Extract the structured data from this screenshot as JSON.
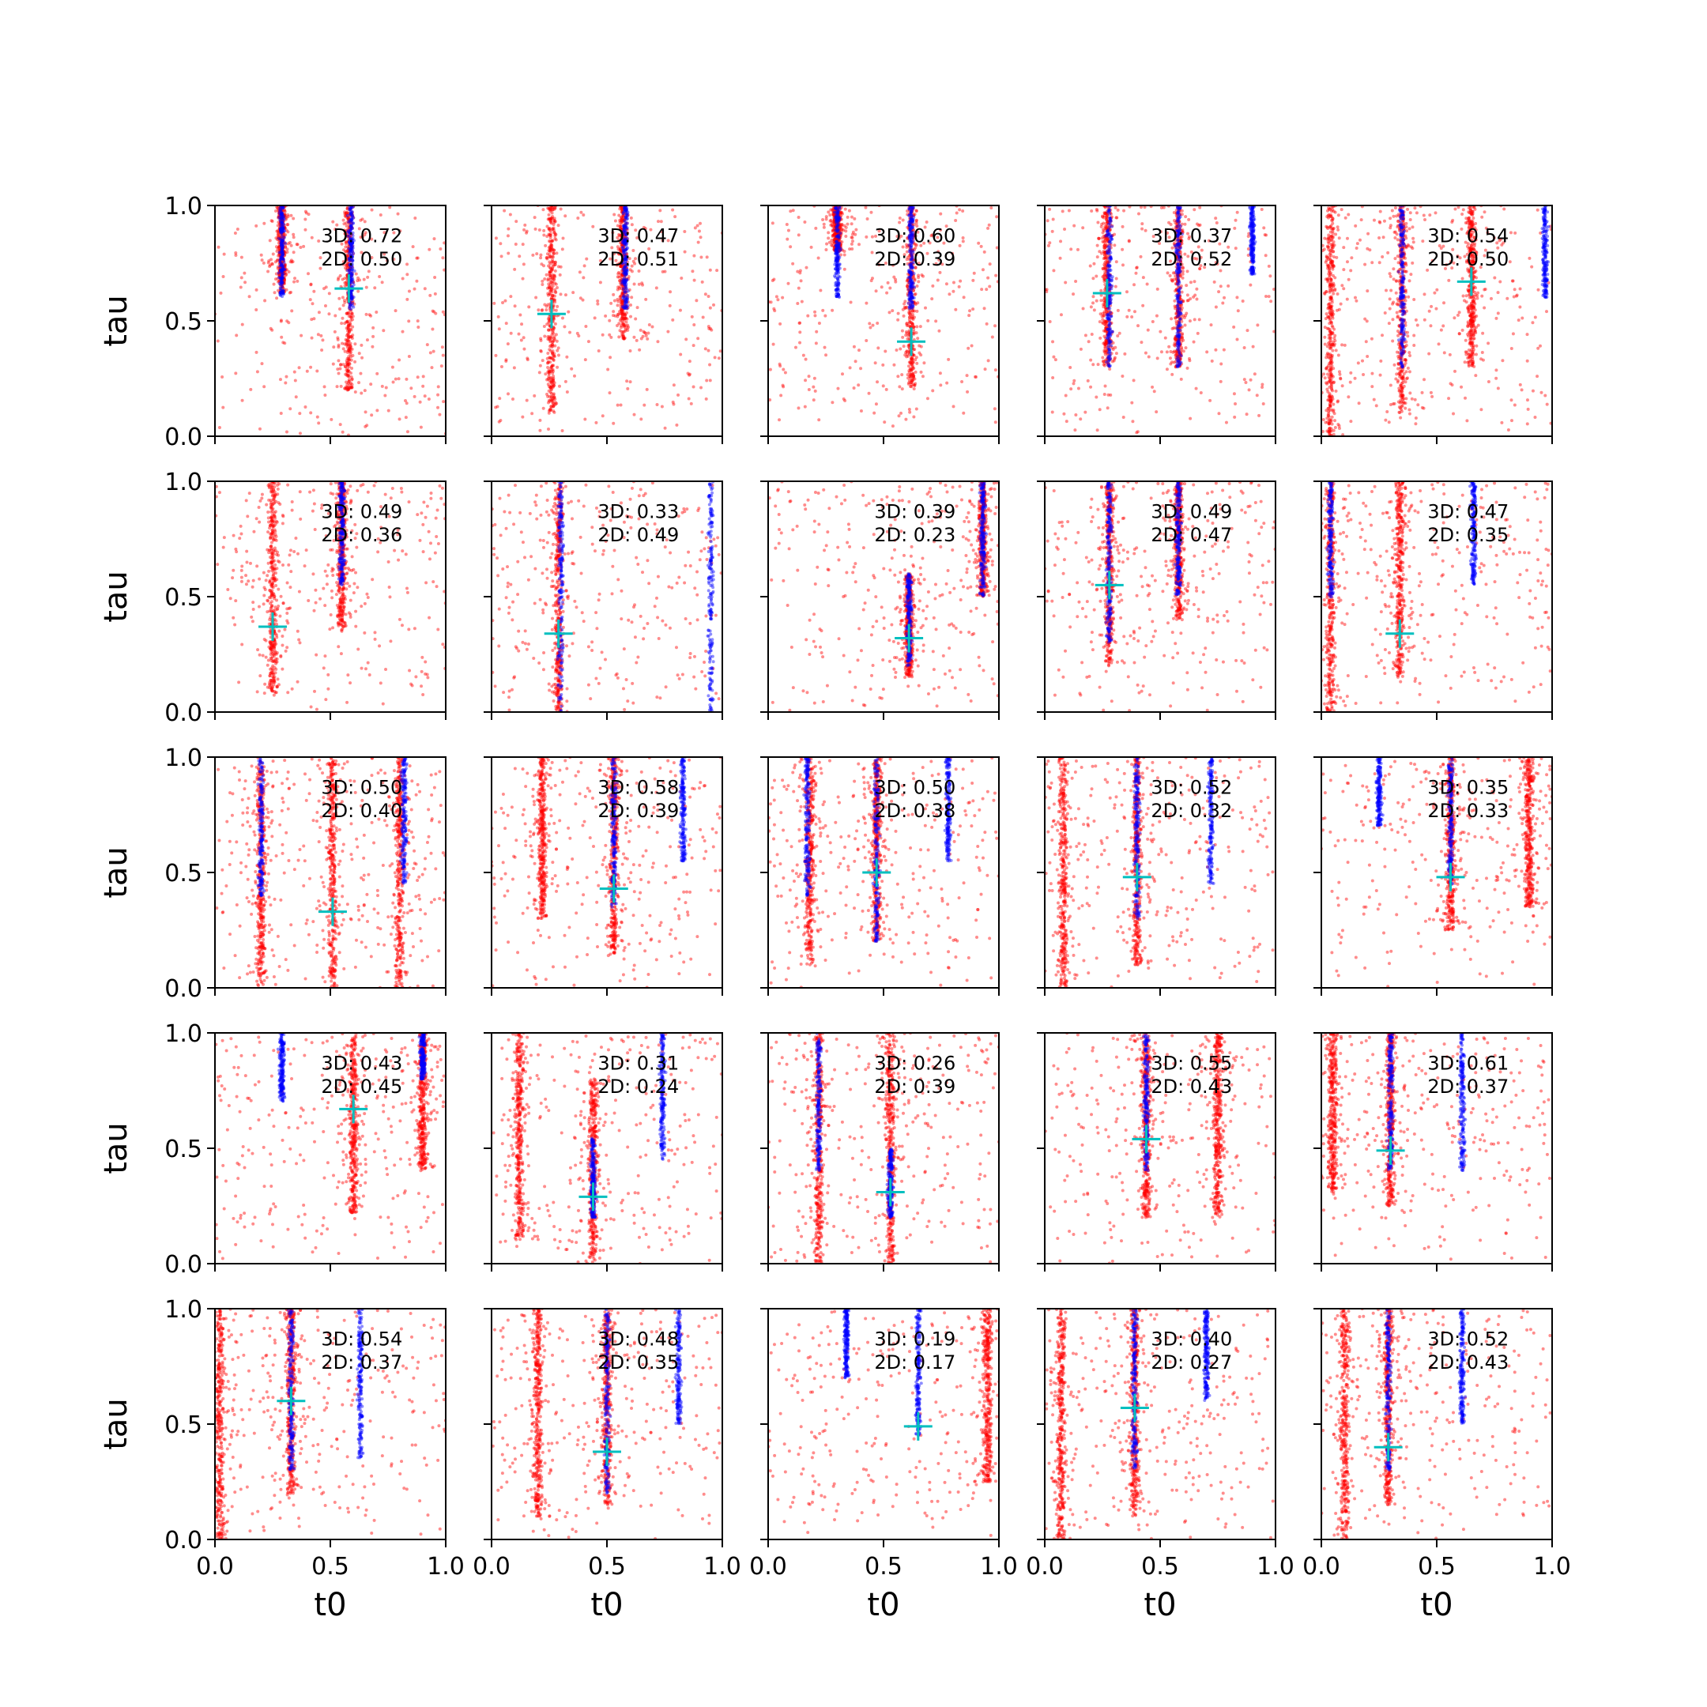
{
  "colors": {
    "red_points": "#ff0000",
    "blue_points": "#0000ff",
    "marker": "#00bfbf",
    "axis": "#000000"
  },
  "chart_data": {
    "type": "scatter",
    "layout": "grid 5 rows x 5 columns, shared axes",
    "xlabel": "t0",
    "ylabel": "tau",
    "xlim": [
      0,
      1
    ],
    "ylim": [
      0,
      1
    ],
    "x_ticks": [
      "0.0",
      "0.5",
      "1.0"
    ],
    "y_ticks": [
      "0.0",
      "0.5",
      "1.0"
    ],
    "series_styles": [
      {
        "color": "#ff0000",
        "marker": "small dot, semi-transparent"
      },
      {
        "color": "#0000ff",
        "marker": "small dot, semi-transparent"
      },
      {
        "color": "#00bfbf",
        "marker": "plus"
      }
    ],
    "panels": [
      {
        "label3d": "3D: 0.72",
        "label2d": "2D: 0.50",
        "marker": [
          0.58,
          0.64
        ],
        "red_bands": [
          [
            0.29,
            0.62,
            1.0
          ],
          [
            0.58,
            0.2,
            1.0
          ]
        ],
        "blue_bands": [
          [
            0.29,
            0.6,
            1.0
          ],
          [
            0.59,
            0.55,
            1.0
          ]
        ]
      },
      {
        "label3d": "3D: 0.47",
        "label2d": "2D: 0.51",
        "marker": [
          0.26,
          0.53
        ],
        "red_bands": [
          [
            0.26,
            0.1,
            1.0
          ],
          [
            0.57,
            0.42,
            1.0
          ]
        ],
        "blue_bands": [
          [
            0.58,
            0.55,
            1.0
          ]
        ]
      },
      {
        "label3d": "3D: 0.60",
        "label2d": "2D: 0.39",
        "marker": [
          0.62,
          0.41
        ],
        "red_bands": [
          [
            0.62,
            0.2,
            1.0
          ],
          [
            0.3,
            0.8,
            1.0
          ]
        ],
        "blue_bands": [
          [
            0.3,
            0.6,
            1.0
          ],
          [
            0.62,
            0.55,
            1.0
          ]
        ]
      },
      {
        "label3d": "3D: 0.37",
        "label2d": "2D: 0.52",
        "marker": [
          0.27,
          0.62
        ],
        "red_bands": [
          [
            0.27,
            0.3,
            1.0
          ],
          [
            0.58,
            0.3,
            1.0
          ]
        ],
        "blue_bands": [
          [
            0.28,
            0.3,
            1.0
          ],
          [
            0.58,
            0.3,
            1.0
          ],
          [
            0.9,
            0.7,
            1.0
          ]
        ]
      },
      {
        "label3d": "3D: 0.54",
        "label2d": "2D: 0.50",
        "marker": [
          0.65,
          0.67
        ],
        "red_bands": [
          [
            0.35,
            0.1,
            1.0
          ],
          [
            0.65,
            0.3,
            1.0
          ],
          [
            0.04,
            0.0,
            1.0
          ]
        ],
        "blue_bands": [
          [
            0.35,
            0.3,
            1.0
          ],
          [
            0.97,
            0.6,
            1.0
          ]
        ]
      },
      {
        "label3d": "3D: 0.49",
        "label2d": "2D: 0.36",
        "marker": [
          0.25,
          0.37
        ],
        "red_bands": [
          [
            0.25,
            0.08,
            1.0
          ],
          [
            0.55,
            0.35,
            1.0
          ]
        ],
        "blue_bands": [
          [
            0.55,
            0.55,
            1.0
          ]
        ]
      },
      {
        "label3d": "3D: 0.33",
        "label2d": "2D: 0.49",
        "marker": [
          0.29,
          0.34
        ],
        "red_bands": [
          [
            0.29,
            0.0,
            1.0
          ]
        ],
        "blue_bands": [
          [
            0.3,
            0.0,
            1.0
          ],
          [
            0.95,
            0.0,
            1.0
          ]
        ]
      },
      {
        "label3d": "3D: 0.39",
        "label2d": "2D: 0.23",
        "marker": [
          0.61,
          0.32
        ],
        "red_bands": [
          [
            0.61,
            0.15,
            0.6
          ],
          [
            0.93,
            0.5,
            1.0
          ]
        ],
        "blue_bands": [
          [
            0.61,
            0.2,
            0.6
          ],
          [
            0.93,
            0.5,
            1.0
          ]
        ]
      },
      {
        "label3d": "3D: 0.49",
        "label2d": "2D: 0.47",
        "marker": [
          0.28,
          0.55
        ],
        "red_bands": [
          [
            0.28,
            0.2,
            1.0
          ],
          [
            0.58,
            0.4,
            1.0
          ]
        ],
        "blue_bands": [
          [
            0.28,
            0.3,
            1.0
          ],
          [
            0.58,
            0.5,
            1.0
          ]
        ]
      },
      {
        "label3d": "3D: 0.47",
        "label2d": "2D: 0.35",
        "marker": [
          0.34,
          0.34
        ],
        "red_bands": [
          [
            0.34,
            0.15,
            1.0
          ],
          [
            0.04,
            0.0,
            1.0
          ]
        ],
        "blue_bands": [
          [
            0.66,
            0.55,
            1.0
          ],
          [
            0.04,
            0.5,
            1.0
          ]
        ]
      },
      {
        "label3d": "3D: 0.50",
        "label2d": "2D: 0.40",
        "marker": [
          0.51,
          0.33
        ],
        "red_bands": [
          [
            0.51,
            0.0,
            1.0
          ],
          [
            0.2,
            0.0,
            1.0
          ],
          [
            0.8,
            0.0,
            1.0
          ]
        ],
        "blue_bands": [
          [
            0.2,
            0.4,
            1.0
          ],
          [
            0.82,
            0.45,
            1.0
          ]
        ]
      },
      {
        "label3d": "3D: 0.58",
        "label2d": "2D: 0.39",
        "marker": [
          0.53,
          0.43
        ],
        "red_bands": [
          [
            0.53,
            0.15,
            1.0
          ],
          [
            0.22,
            0.3,
            1.0
          ]
        ],
        "blue_bands": [
          [
            0.53,
            0.35,
            1.0
          ],
          [
            0.83,
            0.55,
            1.0
          ]
        ]
      },
      {
        "label3d": "3D: 0.50",
        "label2d": "2D: 0.38",
        "marker": [
          0.47,
          0.5
        ],
        "red_bands": [
          [
            0.47,
            0.2,
            1.0
          ],
          [
            0.18,
            0.1,
            1.0
          ]
        ],
        "blue_bands": [
          [
            0.47,
            0.2,
            1.0
          ],
          [
            0.17,
            0.4,
            1.0
          ],
          [
            0.78,
            0.55,
            1.0
          ]
        ]
      },
      {
        "label3d": "3D: 0.52",
        "label2d": "2D: 0.32",
        "marker": [
          0.4,
          0.48
        ],
        "red_bands": [
          [
            0.4,
            0.1,
            1.0
          ],
          [
            0.08,
            0.0,
            1.0
          ]
        ],
        "blue_bands": [
          [
            0.4,
            0.3,
            1.0
          ],
          [
            0.72,
            0.45,
            1.0
          ]
        ]
      },
      {
        "label3d": "3D: 0.35",
        "label2d": "2D: 0.33",
        "marker": [
          0.56,
          0.48
        ],
        "red_bands": [
          [
            0.56,
            0.25,
            1.0
          ],
          [
            0.9,
            0.35,
            1.0
          ]
        ],
        "blue_bands": [
          [
            0.56,
            0.45,
            1.0
          ],
          [
            0.25,
            0.7,
            1.0
          ]
        ]
      },
      {
        "label3d": "3D: 0.43",
        "label2d": "2D: 0.45",
        "marker": [
          0.6,
          0.67
        ],
        "red_bands": [
          [
            0.6,
            0.22,
            1.0
          ],
          [
            0.9,
            0.4,
            1.0
          ]
        ],
        "blue_bands": [
          [
            0.29,
            0.7,
            1.0
          ],
          [
            0.9,
            0.8,
            1.0
          ]
        ]
      },
      {
        "label3d": "3D: 0.31",
        "label2d": "2D: 0.24",
        "marker": [
          0.44,
          0.29
        ],
        "red_bands": [
          [
            0.44,
            0.0,
            0.8
          ],
          [
            0.12,
            0.1,
            1.0
          ]
        ],
        "blue_bands": [
          [
            0.44,
            0.2,
            0.55
          ],
          [
            0.74,
            0.45,
            1.0
          ]
        ]
      },
      {
        "label3d": "3D: 0.26",
        "label2d": "2D: 0.39",
        "marker": [
          0.53,
          0.31
        ],
        "red_bands": [
          [
            0.53,
            0.0,
            1.0
          ],
          [
            0.22,
            0.0,
            1.0
          ]
        ],
        "blue_bands": [
          [
            0.22,
            0.4,
            1.0
          ],
          [
            0.53,
            0.2,
            0.5
          ]
        ]
      },
      {
        "label3d": "3D: 0.55",
        "label2d": "2D: 0.43",
        "marker": [
          0.44,
          0.54
        ],
        "red_bands": [
          [
            0.44,
            0.2,
            1.0
          ],
          [
            0.75,
            0.2,
            1.0
          ]
        ],
        "blue_bands": [
          [
            0.44,
            0.4,
            1.0
          ]
        ]
      },
      {
        "label3d": "3D: 0.61",
        "label2d": "2D: 0.37",
        "marker": [
          0.3,
          0.49
        ],
        "red_bands": [
          [
            0.3,
            0.25,
            1.0
          ],
          [
            0.05,
            0.3,
            1.0
          ]
        ],
        "blue_bands": [
          [
            0.3,
            0.4,
            1.0
          ],
          [
            0.61,
            0.4,
            1.0
          ]
        ]
      },
      {
        "label3d": "3D: 0.54",
        "label2d": "2D: 0.37",
        "marker": [
          0.33,
          0.6
        ],
        "red_bands": [
          [
            0.33,
            0.2,
            1.0
          ],
          [
            0.02,
            0.0,
            1.0
          ]
        ],
        "blue_bands": [
          [
            0.33,
            0.3,
            1.0
          ],
          [
            0.63,
            0.35,
            1.0
          ]
        ]
      },
      {
        "label3d": "3D: 0.48",
        "label2d": "2D: 0.35",
        "marker": [
          0.5,
          0.38
        ],
        "red_bands": [
          [
            0.5,
            0.15,
            1.0
          ],
          [
            0.2,
            0.1,
            1.0
          ]
        ],
        "blue_bands": [
          [
            0.5,
            0.2,
            1.0
          ],
          [
            0.81,
            0.5,
            1.0
          ]
        ]
      },
      {
        "label3d": "3D: 0.19",
        "label2d": "2D: 0.17",
        "marker": [
          0.65,
          0.49
        ],
        "red_bands": [
          [
            0.95,
            0.25,
            1.0
          ]
        ],
        "blue_bands": [
          [
            0.65,
            0.45,
            1.0
          ],
          [
            0.34,
            0.7,
            1.0
          ]
        ]
      },
      {
        "label3d": "3D: 0.40",
        "label2d": "2D: 0.27",
        "marker": [
          0.39,
          0.57
        ],
        "red_bands": [
          [
            0.39,
            0.1,
            1.0
          ],
          [
            0.07,
            0.0,
            1.0
          ]
        ],
        "blue_bands": [
          [
            0.39,
            0.3,
            1.0
          ],
          [
            0.7,
            0.6,
            1.0
          ]
        ]
      },
      {
        "label3d": "3D: 0.52",
        "label2d": "2D: 0.43",
        "marker": [
          0.29,
          0.4
        ],
        "red_bands": [
          [
            0.29,
            0.15,
            1.0
          ],
          [
            0.1,
            0.0,
            1.0
          ]
        ],
        "blue_bands": [
          [
            0.29,
            0.3,
            1.0
          ],
          [
            0.61,
            0.5,
            1.0
          ]
        ]
      }
    ]
  }
}
